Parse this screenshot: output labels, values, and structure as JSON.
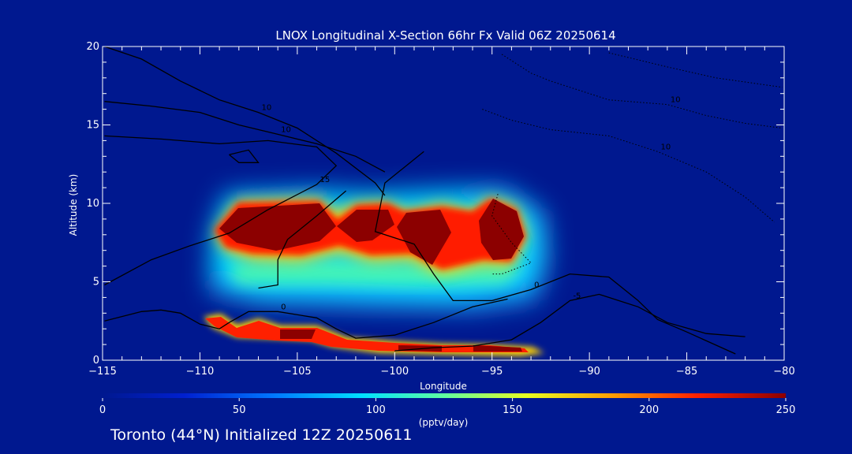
{
  "footer": {
    "text": "Toronto (44°N) Initialized 12Z 20250611"
  },
  "chart_data": {
    "type": "heatmap",
    "title": "LNOX Longitudinal X-Section 66hr  Fx Valid 06Z 20250614",
    "xlabel": "Longitude",
    "ylabel": "Altitude (km)",
    "xlim": [
      -115,
      -80
    ],
    "ylim": [
      0,
      20
    ],
    "x_ticks": [
      -115,
      -110,
      -105,
      -100,
      -95,
      -90,
      -85,
      -80
    ],
    "x_tick_labels": [
      "−115",
      "−110",
      "−105",
      "−100",
      "−95",
      "−90",
      "−85",
      "−80"
    ],
    "y_ticks": [
      0,
      5,
      10,
      15,
      20
    ],
    "y_tick_labels": [
      "0",
      "5",
      "10",
      "15",
      "20"
    ],
    "colorbar": {
      "label": "(pptv/day)",
      "min": 0,
      "max": 250,
      "ticks": [
        0,
        50,
        100,
        150,
        200,
        250
      ],
      "tick_labels": [
        "0",
        "50",
        "100",
        "150",
        "200",
        "250"
      ]
    },
    "cells": [
      {
        "lon": -109.5,
        "alt": 8.3,
        "value": 210
      },
      {
        "lon": -108.0,
        "alt": 8.6,
        "value": 250
      },
      {
        "lon": -106.0,
        "alt": 8.8,
        "value": 250
      },
      {
        "lon": -104.0,
        "alt": 8.8,
        "value": 250
      },
      {
        "lon": -102.0,
        "alt": 8.5,
        "value": 250
      },
      {
        "lon": -100.0,
        "alt": 8.5,
        "value": 230
      },
      {
        "lon": -98.0,
        "alt": 8.3,
        "value": 250
      },
      {
        "lon": -96.5,
        "alt": 8.5,
        "value": 240
      },
      {
        "lon": -94.8,
        "alt": 8.3,
        "value": 250
      },
      {
        "lon": -107.5,
        "alt": 5.3,
        "value": 90
      },
      {
        "lon": -104.0,
        "alt": 5.0,
        "value": 80
      },
      {
        "lon": -100.5,
        "alt": 4.6,
        "value": 75
      },
      {
        "lon": -97.5,
        "alt": 4.5,
        "value": 70
      },
      {
        "lon": -94.5,
        "alt": 5.0,
        "value": 70
      },
      {
        "lon": -109.5,
        "alt": 2.5,
        "value": 250
      },
      {
        "lon": -106.5,
        "alt": 1.8,
        "value": 250
      },
      {
        "lon": -103.0,
        "alt": 1.5,
        "value": 250
      },
      {
        "lon": -100.0,
        "alt": 1.0,
        "value": 240
      },
      {
        "lon": -97.0,
        "alt": 0.7,
        "value": 250
      },
      {
        "lon": -94.5,
        "alt": 0.6,
        "value": 250
      }
    ],
    "contours": [
      {
        "style": "solid",
        "label": "10",
        "points": [
          [
            -114.9,
            20
          ],
          [
            -113,
            19.2
          ],
          [
            -111,
            17.8
          ],
          [
            -109,
            16.6
          ],
          [
            -107,
            15.8
          ],
          [
            -105,
            14.8
          ],
          [
            -103,
            13.2
          ],
          [
            -101,
            11.3
          ],
          [
            -100.5,
            10.5
          ]
        ]
      },
      {
        "style": "solid",
        "label": "10",
        "points": [
          [
            -114.9,
            16.5
          ],
          [
            -112.5,
            16.2
          ],
          [
            -110,
            15.8
          ],
          [
            -108,
            15
          ],
          [
            -106,
            14.4
          ],
          [
            -104,
            13.8
          ],
          [
            -102,
            13
          ],
          [
            -100.5,
            12
          ]
        ]
      },
      {
        "style": "solid",
        "label": "15",
        "points": [
          [
            -114.9,
            14.3
          ],
          [
            -112,
            14.1
          ],
          [
            -109,
            13.8
          ],
          [
            -106.5,
            14
          ],
          [
            -104,
            13.6
          ],
          [
            -103,
            12.4
          ],
          [
            -104,
            11.2
          ],
          [
            -106.5,
            9.6
          ],
          [
            -108.5,
            8.1
          ],
          [
            -110.5,
            7.3
          ],
          [
            -112.5,
            6.4
          ],
          [
            -114.9,
            4.8
          ]
        ]
      },
      {
        "style": "solid",
        "label": "0",
        "points": [
          [
            -98.5,
            13.3
          ],
          [
            -100.5,
            11.3
          ],
          [
            -101,
            8.2
          ],
          [
            -99,
            7.4
          ],
          [
            -98,
            5.5
          ],
          [
            -97,
            3.8
          ],
          [
            -95,
            3.8
          ],
          [
            -93,
            4.5
          ],
          [
            -91,
            5.5
          ],
          [
            -89,
            5.3
          ],
          [
            -87.5,
            3.8
          ],
          [
            -86.5,
            2.6
          ],
          [
            -85,
            1.8
          ],
          [
            -82.5,
            0.4
          ]
        ]
      },
      {
        "style": "solid",
        "label": "",
        "points": [
          [
            -102.5,
            10.8
          ],
          [
            -104,
            9.2
          ],
          [
            -105.5,
            7.7
          ],
          [
            -106,
            6.4
          ],
          [
            -106,
            4.8
          ],
          [
            -107,
            4.6
          ]
        ]
      },
      {
        "style": "solid",
        "label": "-5",
        "points": [
          [
            -100,
            0.6
          ],
          [
            -98,
            0.8
          ],
          [
            -96,
            0.9
          ],
          [
            -94,
            1.3
          ],
          [
            -92.5,
            2.4
          ],
          [
            -91,
            3.8
          ],
          [
            -89.5,
            4.2
          ],
          [
            -87.5,
            3.4
          ],
          [
            -86,
            2.4
          ],
          [
            -84,
            1.7
          ],
          [
            -82,
            1.5
          ]
        ]
      },
      {
        "style": "solid",
        "label": "0",
        "points": [
          [
            -114.9,
            2.5
          ],
          [
            -113,
            3.1
          ],
          [
            -112,
            3.2
          ],
          [
            -111,
            3.0
          ],
          [
            -110,
            2.3
          ],
          [
            -109,
            2.0
          ],
          [
            -108.5,
            2.4
          ],
          [
            -107.5,
            3.1
          ],
          [
            -106,
            3.1
          ],
          [
            -104,
            2.7
          ],
          [
            -103,
            2.0
          ],
          [
            -102,
            1.4
          ],
          [
            -100,
            1.6
          ],
          [
            -98,
            2.4
          ],
          [
            -96,
            3.4
          ],
          [
            -94.2,
            3.9
          ]
        ]
      },
      {
        "style": "solid",
        "label": "",
        "points": [
          [
            -108.5,
            13.1
          ],
          [
            -107.5,
            13.4
          ],
          [
            -107,
            12.6
          ],
          [
            -108,
            12.6
          ],
          [
            -108.5,
            13.1
          ]
        ]
      },
      {
        "style": "dotted",
        "label": "10",
        "points": [
          [
            -94.5,
            19.5
          ],
          [
            -93,
            18.3
          ],
          [
            -92,
            17.8
          ],
          [
            -89,
            16.6
          ],
          [
            -86,
            16.3
          ],
          [
            -84,
            15.6
          ],
          [
            -82,
            15.1
          ],
          [
            -80.1,
            14.8
          ]
        ]
      },
      {
        "style": "dotted",
        "label": "",
        "points": [
          [
            -89,
            19.6
          ],
          [
            -86,
            18.7
          ],
          [
            -83.5,
            18.0
          ],
          [
            -80.1,
            17.4
          ]
        ]
      },
      {
        "style": "dotted",
        "label": "10",
        "points": [
          [
            -95.5,
            16.0
          ],
          [
            -94,
            15.3
          ],
          [
            -92,
            14.7
          ],
          [
            -89,
            14.3
          ],
          [
            -86.5,
            13.3
          ],
          [
            -84,
            12.0
          ],
          [
            -82,
            10.4
          ],
          [
            -80.5,
            8.8
          ]
        ]
      },
      {
        "style": "dotted",
        "label": "",
        "points": [
          [
            -94.7,
            10.6
          ],
          [
            -95,
            9.2
          ],
          [
            -94,
            7.5
          ],
          [
            -93,
            6.2
          ],
          [
            -94.5,
            5.5
          ],
          [
            -95,
            5.5
          ]
        ]
      }
    ],
    "grid": false,
    "legend": "none"
  }
}
